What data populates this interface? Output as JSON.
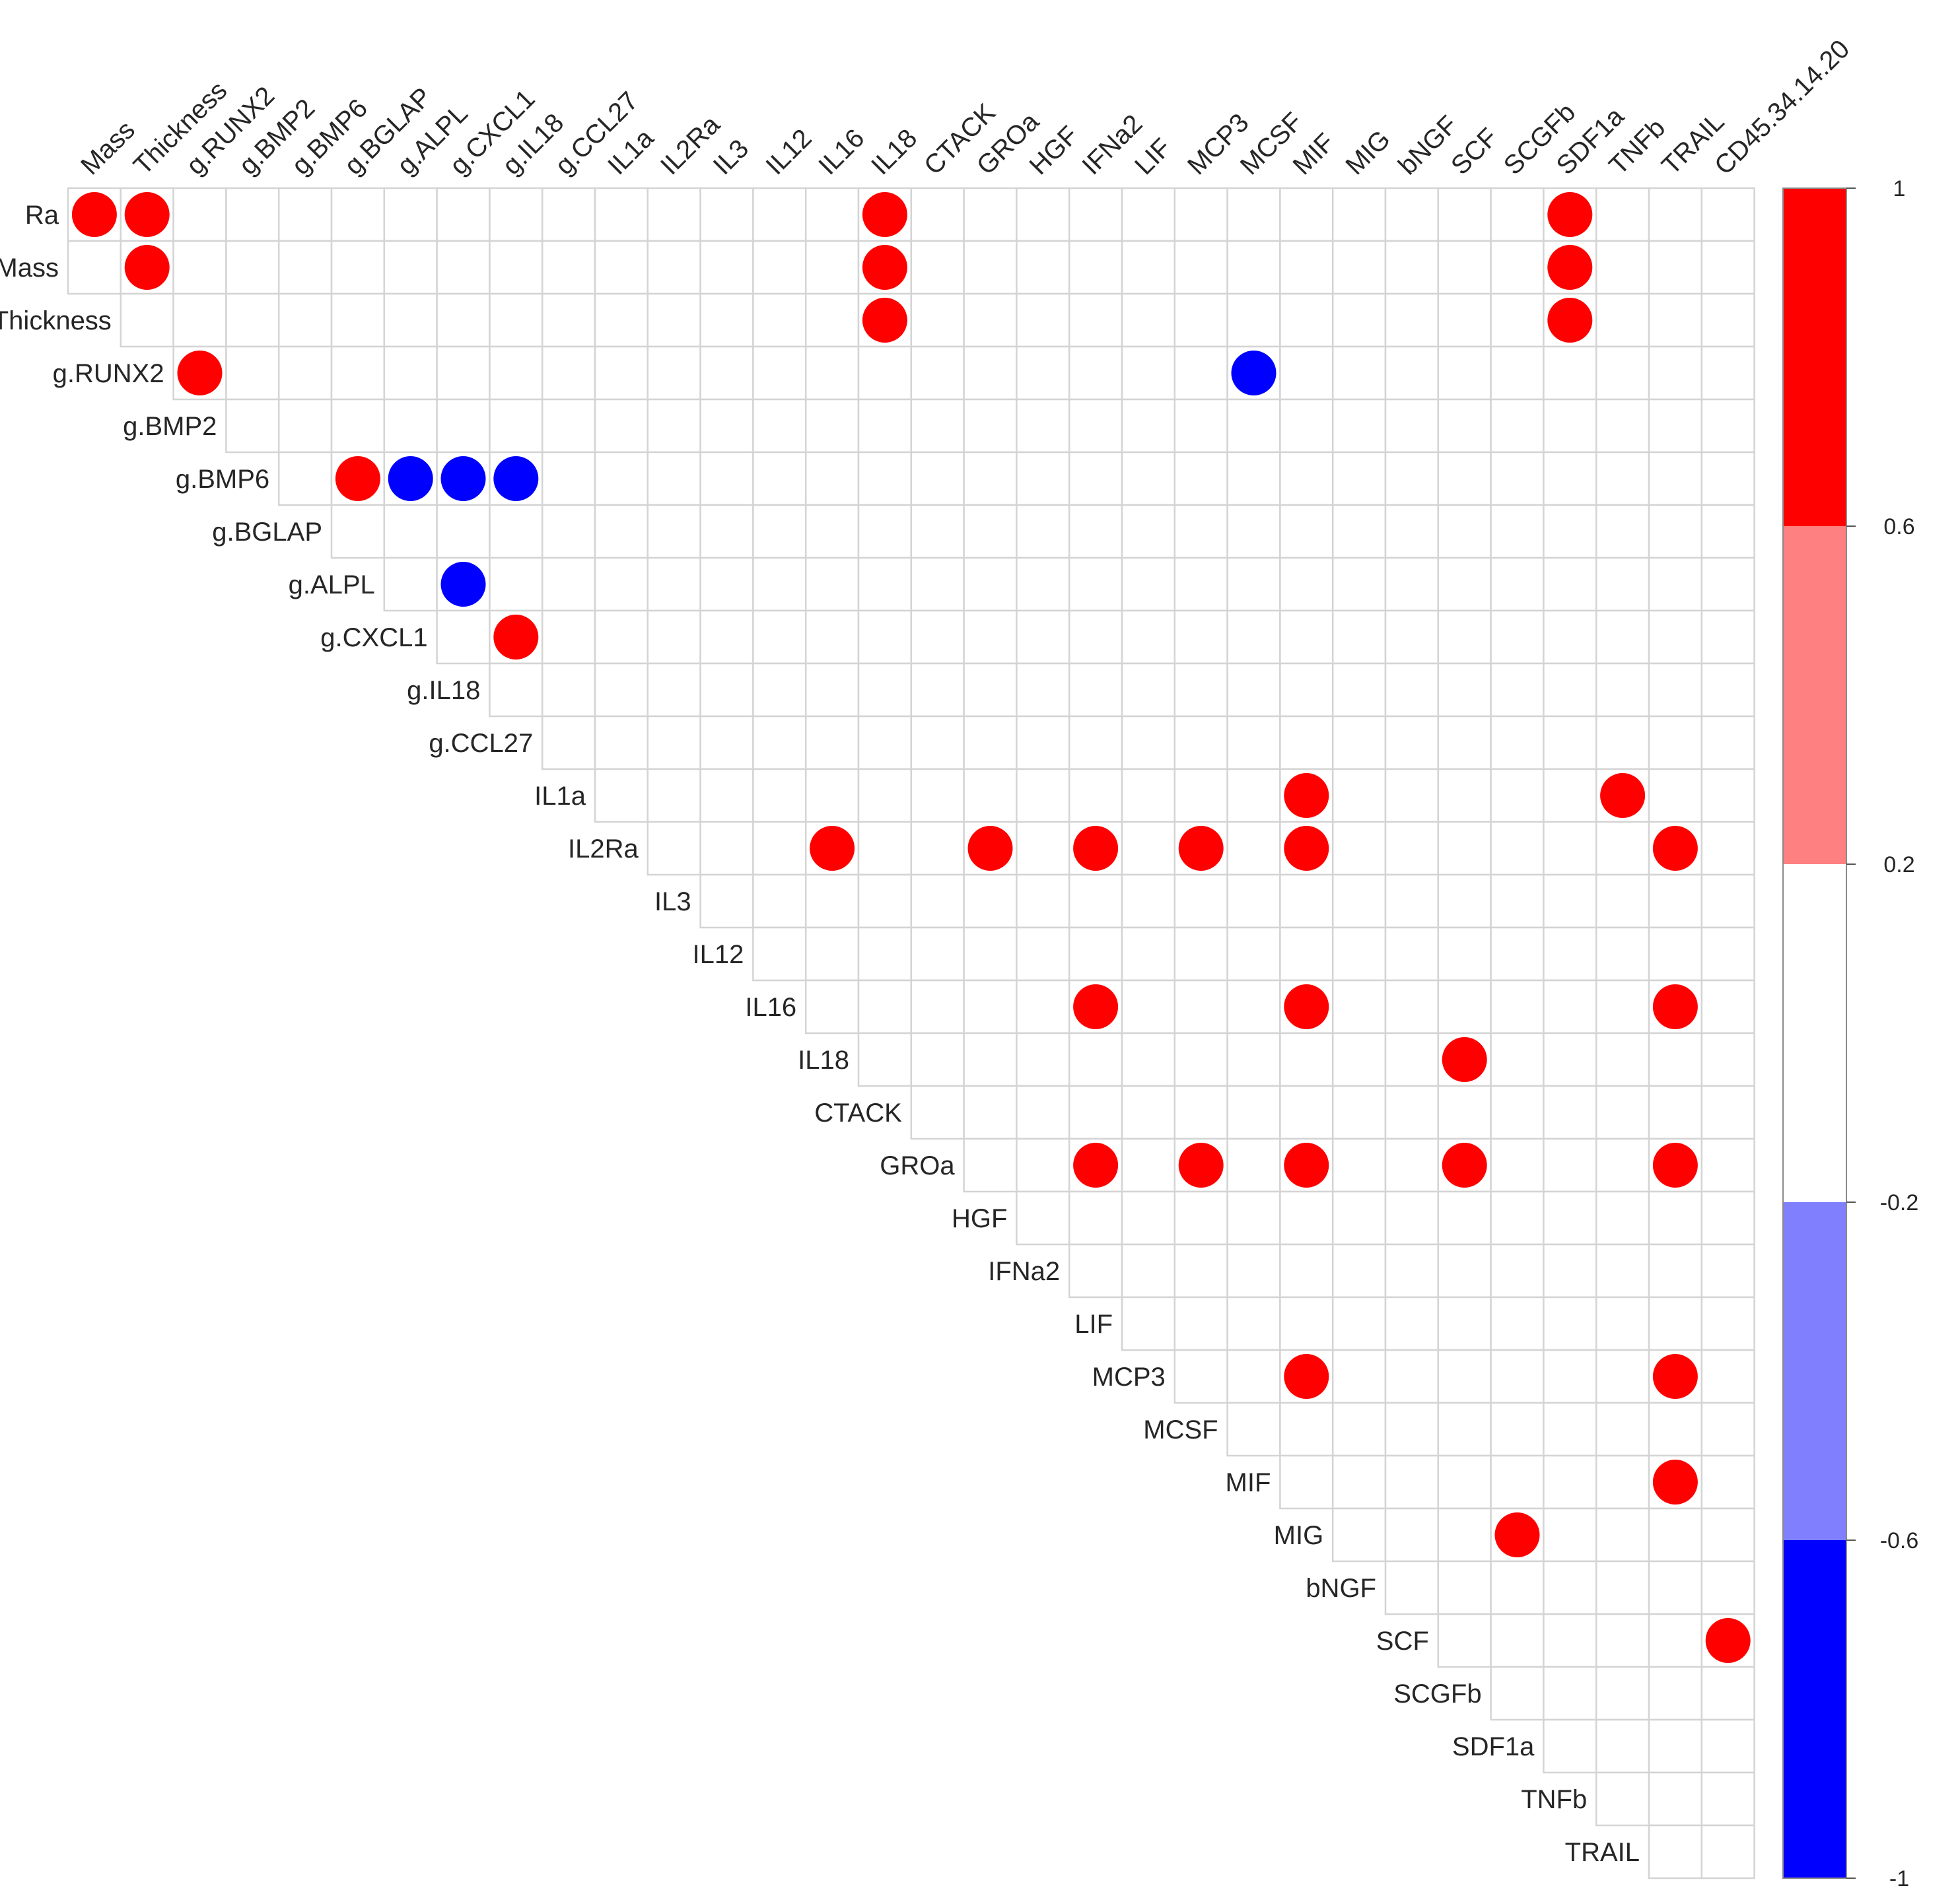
{
  "chart_data": {
    "type": "heatmap",
    "subtype": "upper-triangular correlation matrix (circles shown for significant correlations)",
    "column_labels": [
      "Mass",
      "Thickness",
      "g.RUNX2",
      "g.BMP2",
      "g.BMP6",
      "g.BGLAP",
      "g.ALPL",
      "g.CXCL1",
      "g.IL18",
      "g.CCL27",
      "IL1a",
      "IL2Ra",
      "IL3",
      "IL12",
      "IL16",
      "IL18",
      "CTACK",
      "GROa",
      "HGF",
      "IFNa2",
      "LIF",
      "MCP3",
      "MCSF",
      "MIF",
      "MIG",
      "bNGF",
      "SCF",
      "SCGFb",
      "SDF1a",
      "TNFb",
      "TRAIL",
      "CD45.34.14.20"
    ],
    "row_labels": [
      "Ra",
      "Mass",
      "Thickness",
      "g.RUNX2",
      "g.BMP2",
      "g.BMP6",
      "g.BGLAP",
      "g.ALPL",
      "g.CXCL1",
      "g.IL18",
      "g.CCL27",
      "IL1a",
      "IL2Ra",
      "IL3",
      "IL12",
      "IL16",
      "IL18",
      "CTACK",
      "GROa",
      "HGF",
      "IFNa2",
      "LIF",
      "MCP3",
      "MCSF",
      "MIF",
      "MIG",
      "bNGF",
      "SCF",
      "SCGFb",
      "SDF1a",
      "TNFb",
      "TRAIL"
    ],
    "significant_correlations": [
      {
        "row": "Ra",
        "col": "Mass",
        "value": 0.85
      },
      {
        "row": "Ra",
        "col": "Thickness",
        "value": 0.85
      },
      {
        "row": "Ra",
        "col": "IL18",
        "value": 0.8
      },
      {
        "row": "Ra",
        "col": "SDF1a",
        "value": 0.8
      },
      {
        "row": "Mass",
        "col": "Thickness",
        "value": 0.85
      },
      {
        "row": "Mass",
        "col": "IL18",
        "value": 0.8
      },
      {
        "row": "Mass",
        "col": "SDF1a",
        "value": 0.8
      },
      {
        "row": "Thickness",
        "col": "IL18",
        "value": 0.8
      },
      {
        "row": "Thickness",
        "col": "SDF1a",
        "value": 0.8
      },
      {
        "row": "g.RUNX2",
        "col": "g.RUNX2",
        "value": 0.8
      },
      {
        "row": "g.RUNX2",
        "col": "MCSF",
        "value": -0.8
      },
      {
        "row": "g.BMP6",
        "col": "g.BGLAP",
        "value": 0.8
      },
      {
        "row": "g.BMP6",
        "col": "g.ALPL",
        "value": -0.8
      },
      {
        "row": "g.BMP6",
        "col": "g.CXCL1",
        "value": -0.8
      },
      {
        "row": "g.BMP6",
        "col": "g.IL18",
        "value": -0.8
      },
      {
        "row": "g.ALPL",
        "col": "g.CXCL1",
        "value": -0.8
      },
      {
        "row": "g.CXCL1",
        "col": "g.IL18",
        "value": 0.8
      },
      {
        "row": "IL1a",
        "col": "MIF",
        "value": 0.8
      },
      {
        "row": "IL1a",
        "col": "TNFb",
        "value": 0.8
      },
      {
        "row": "IL2Ra",
        "col": "IL16",
        "value": 0.8
      },
      {
        "row": "IL2Ra",
        "col": "GROa",
        "value": 0.8
      },
      {
        "row": "IL2Ra",
        "col": "IFNa2",
        "value": 0.8
      },
      {
        "row": "IL2Ra",
        "col": "MCP3",
        "value": 0.8
      },
      {
        "row": "IL2Ra",
        "col": "MIF",
        "value": 0.8
      },
      {
        "row": "IL2Ra",
        "col": "TRAIL",
        "value": 0.8
      },
      {
        "row": "IL16",
        "col": "IFNa2",
        "value": 0.8
      },
      {
        "row": "IL16",
        "col": "MIF",
        "value": 0.8
      },
      {
        "row": "IL16",
        "col": "TRAIL",
        "value": 0.8
      },
      {
        "row": "IL18",
        "col": "SCF",
        "value": 0.8
      },
      {
        "row": "GROa",
        "col": "IFNa2",
        "value": 0.8
      },
      {
        "row": "GROa",
        "col": "MCP3",
        "value": 0.8
      },
      {
        "row": "GROa",
        "col": "MIF",
        "value": 0.8
      },
      {
        "row": "GROa",
        "col": "SCF",
        "value": 0.8
      },
      {
        "row": "GROa",
        "col": "TRAIL",
        "value": 0.8
      },
      {
        "row": "MCP3",
        "col": "MIF",
        "value": 0.8
      },
      {
        "row": "MCP3",
        "col": "TRAIL",
        "value": 0.8
      },
      {
        "row": "MIF",
        "col": "TRAIL",
        "value": 0.8
      },
      {
        "row": "MIG",
        "col": "SCGFb",
        "value": 0.8
      },
      {
        "row": "SCF",
        "col": "CD45.34.14.20",
        "value": 0.8
      }
    ],
    "colorbar": {
      "range": [
        -1,
        1
      ],
      "tick_labels": [
        "1",
        "0.6",
        "0.2",
        "-0.2",
        "-0.6",
        "-1"
      ],
      "bins": [
        {
          "from": 0.6,
          "to": 1,
          "color": "#ff0000"
        },
        {
          "from": 0.2,
          "to": 0.6,
          "color": "#ff8080"
        },
        {
          "from": -0.2,
          "to": 0.2,
          "color": "#ffffff"
        },
        {
          "from": -0.6,
          "to": -0.2,
          "color": "#8080ff"
        },
        {
          "from": -1,
          "to": -0.6,
          "color": "#0000ff"
        }
      ]
    },
    "title": "",
    "xlabel": "",
    "ylabel": ""
  }
}
